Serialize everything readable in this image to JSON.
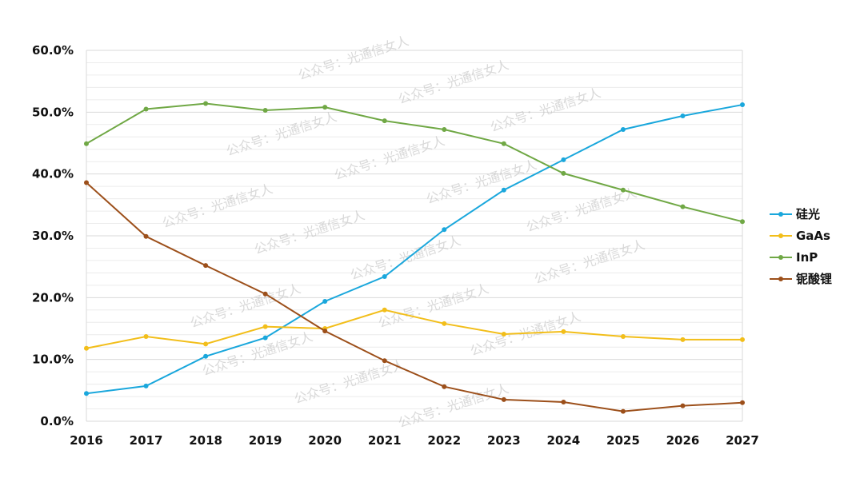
{
  "watermark": "公众号：光通信女人",
  "chart_data": {
    "type": "line",
    "title": "",
    "xlabel": "",
    "ylabel": "",
    "x": [
      "2016",
      "2017",
      "2018",
      "2019",
      "2020",
      "2021",
      "2022",
      "2023",
      "2024",
      "2025",
      "2026",
      "2027"
    ],
    "ylim": [
      0,
      60
    ],
    "yticks": [
      "0.0%",
      "10.0%",
      "20.0%",
      "30.0%",
      "40.0%",
      "50.0%",
      "60.0%"
    ],
    "grid": true,
    "legend_position": "right",
    "series": [
      {
        "name": "硅光",
        "color": "#1aa7dc",
        "values": [
          4.5,
          5.7,
          10.5,
          13.5,
          19.4,
          23.4,
          31.0,
          37.4,
          42.3,
          47.2,
          49.4,
          51.2
        ]
      },
      {
        "name": "GaAs",
        "color": "#f2be1a",
        "values": [
          11.8,
          13.7,
          12.5,
          15.3,
          15.0,
          18.0,
          15.8,
          14.1,
          14.5,
          13.7,
          13.2,
          13.2
        ]
      },
      {
        "name": "InP",
        "color": "#70a845",
        "values": [
          44.9,
          50.5,
          51.4,
          50.3,
          50.8,
          48.6,
          47.2,
          44.9,
          40.1,
          37.4,
          34.7,
          32.3
        ]
      },
      {
        "name": "铌酸锂",
        "color": "#9c4f1a",
        "values": [
          38.6,
          29.9,
          25.2,
          20.6,
          14.6,
          9.8,
          5.6,
          3.5,
          3.1,
          1.6,
          2.5,
          3.0
        ]
      }
    ]
  }
}
